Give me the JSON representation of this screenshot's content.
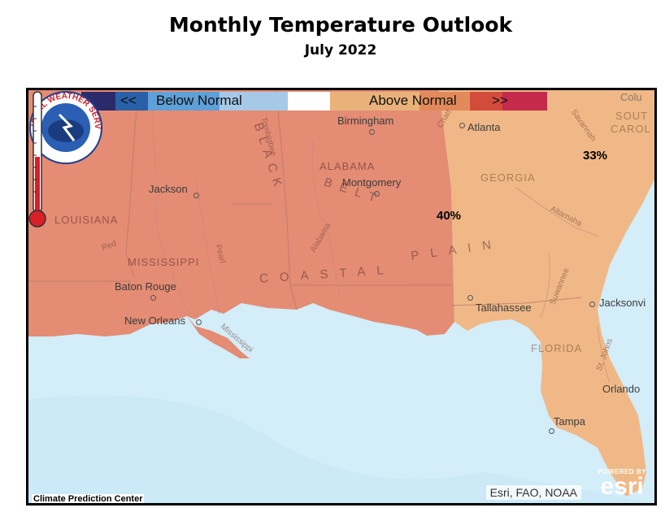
{
  "title": "Monthly Temperature Outlook",
  "subtitle": "July 2022",
  "legend": {
    "left_arrows": "<<",
    "below_label": "Below Normal",
    "above_label": "Above Normal",
    "right_arrows": ">>",
    "colors": [
      "#2b2a6b",
      "#2960a8",
      "#5fa0d8",
      "#a6c9e8",
      "#ffffff",
      "#e9b27a",
      "#e38a5a",
      "#d24b3b",
      "#c52a4c"
    ]
  },
  "probabilities": {
    "west": "40%",
    "east": "33%"
  },
  "outlook_colors": {
    "west": "#e48c74",
    "east": "#f0b886",
    "water": "#d3edf9"
  },
  "cities": [
    "Birmingham",
    "Atlanta",
    "Montgomery",
    "Jackson",
    "Baton Rouge",
    "New Orleans",
    "Tallahassee",
    "Jacksonvi",
    "Orlando",
    "Tampa",
    "Savannah",
    "Colu"
  ],
  "states": [
    "ALABAMA",
    "GEORGIA",
    "LOUISIANA",
    "MISSISSIPPI",
    "FLORIDA",
    "SOUT",
    "CAROL"
  ],
  "rivers": [
    "Tombigbee",
    "Alabama",
    "Pearl",
    "Red",
    "Mississippi",
    "Altamaha",
    "Suwannee",
    "St. Johns",
    "Chatt"
  ],
  "regions": {
    "black_belt_1": "BLACK",
    "black_belt_2": "BELT",
    "coastal": "COASTAL",
    "plain": "PLAIN"
  },
  "attribution": "Esri, FAO, NOAA",
  "esri": {
    "powered": "POWERED BY",
    "brand": "esri"
  },
  "logo_text": "NATIONAL WEATHER SERVICE",
  "agency": "Climate Prediction Center"
}
